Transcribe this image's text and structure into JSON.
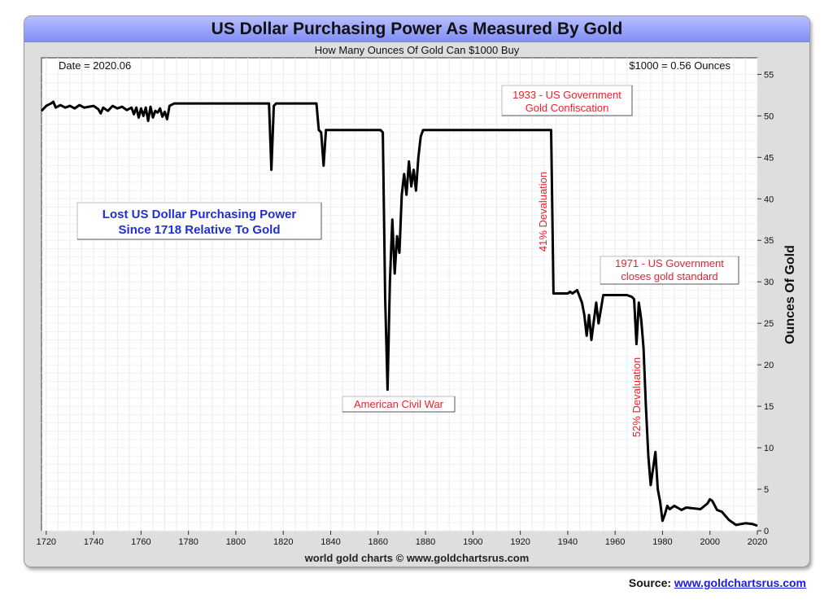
{
  "chart_data": {
    "type": "line",
    "title": "US Dollar Purchasing Power As Measured By Gold",
    "subtitle": "How Many Ounces Of Gold Can $1000 Buy",
    "ylabel": "Ounces Of Gold",
    "xlim": [
      1718,
      2020
    ],
    "ylim": [
      0,
      57
    ],
    "x_ticks": [
      1720,
      1740,
      1760,
      1780,
      1800,
      1820,
      1840,
      1860,
      1880,
      1900,
      1920,
      1940,
      1960,
      1980,
      2000,
      2020
    ],
    "y_ticks": [
      0,
      5,
      10,
      15,
      20,
      25,
      30,
      35,
      40,
      45,
      50,
      55
    ],
    "grid": true,
    "series": [
      {
        "x": [
          1718,
          1720,
          1722,
          1723,
          1724,
          1726,
          1728,
          1730,
          1732,
          1734,
          1736,
          1738,
          1740,
          1742,
          1743,
          1744,
          1746,
          1748,
          1750,
          1752,
          1754,
          1756,
          1757,
          1758,
          1759,
          1760,
          1761,
          1762,
          1763,
          1764,
          1765,
          1766,
          1767,
          1768,
          1769,
          1770,
          1771,
          1772,
          1774,
          1776,
          1780,
          1790,
          1800,
          1810,
          1814,
          1815,
          1816,
          1817,
          1820,
          1830,
          1834,
          1835,
          1836,
          1837,
          1838,
          1840,
          1850,
          1861,
          1862,
          1863,
          1864,
          1865,
          1866,
          1867,
          1868,
          1869,
          1870,
          1871,
          1872,
          1873,
          1874,
          1875,
          1876,
          1877,
          1878,
          1879,
          1890,
          1900,
          1910,
          1920,
          1930,
          1932,
          1933,
          1934,
          1938,
          1940,
          1941,
          1942,
          1944,
          1946,
          1947,
          1948,
          1949,
          1950,
          1952,
          1953,
          1955,
          1960,
          1965,
          1967,
          1968,
          1969,
          1970,
          1971,
          1972,
          1973,
          1974,
          1975,
          1976,
          1977,
          1978,
          1979,
          1980,
          1981,
          1982,
          1983,
          1985,
          1988,
          1990,
          1993,
          1996,
          1999,
          2000,
          2001,
          2003,
          2005,
          2008,
          2011,
          2013,
          2015,
          2018,
          2020
        ],
        "y": [
          50.6,
          51.2,
          51.5,
          51.7,
          51.0,
          51.3,
          51.0,
          51.2,
          50.9,
          51.3,
          51.0,
          51.1,
          51.2,
          50.8,
          50.3,
          51.0,
          50.6,
          51.2,
          50.9,
          51.1,
          50.7,
          51.0,
          50.2,
          51.0,
          49.8,
          50.9,
          50.0,
          51.0,
          49.4,
          51.1,
          49.8,
          50.6,
          50.4,
          50.9,
          49.9,
          50.5,
          49.6,
          51.2,
          51.5,
          51.5,
          51.5,
          51.5,
          51.5,
          51.5,
          51.5,
          43.5,
          51.2,
          51.5,
          51.5,
          51.5,
          51.5,
          48.3,
          48.0,
          44.0,
          48.3,
          48.3,
          48.3,
          48.3,
          48.0,
          28.0,
          17.0,
          30.0,
          37.5,
          31.0,
          35.5,
          33.5,
          40.5,
          43.0,
          40.5,
          44.5,
          41.5,
          43.5,
          41.0,
          45.0,
          47.5,
          48.3,
          48.3,
          48.3,
          48.3,
          48.3,
          48.3,
          48.3,
          48.3,
          28.6,
          28.6,
          28.6,
          28.8,
          28.6,
          29.0,
          27.5,
          26.0,
          23.5,
          26.0,
          23.0,
          27.5,
          25.0,
          28.4,
          28.4,
          28.4,
          28.2,
          27.9,
          22.5,
          27.5,
          25.5,
          22.0,
          15.0,
          9.0,
          5.5,
          7.5,
          9.5,
          5.0,
          3.5,
          1.2,
          2.0,
          3.0,
          2.6,
          3.0,
          2.5,
          2.8,
          2.7,
          2.6,
          3.3,
          3.8,
          3.6,
          2.5,
          2.3,
          1.3,
          0.7,
          0.8,
          0.9,
          0.8,
          0.6
        ]
      }
    ],
    "annotations": [
      {
        "label": "Date = 2020.06"
      },
      {
        "label": "$1000 = 0.56 Ounces"
      },
      {
        "label": "Lost US Dollar Purchasing Power",
        "label2": "Since 1718 Relative To Gold"
      },
      {
        "label": "1933 - US Government",
        "label2": "Gold Confiscation"
      },
      {
        "label": "41% Devaluation"
      },
      {
        "label": "1971 - US Government",
        "label2": "closes gold standard"
      },
      {
        "label": "52% Devaluation"
      },
      {
        "label": "American Civil War"
      }
    ]
  },
  "footer": {
    "credit": "world gold charts © www.goldchartsrus.com",
    "source_label": "Source: ",
    "source_link": "www.goldchartsrus.com"
  },
  "colors": {
    "line": "#000000",
    "annotation_red": "#e8232a",
    "annotation_blue": "#2030d0",
    "title_bar": "#8c96f5"
  }
}
